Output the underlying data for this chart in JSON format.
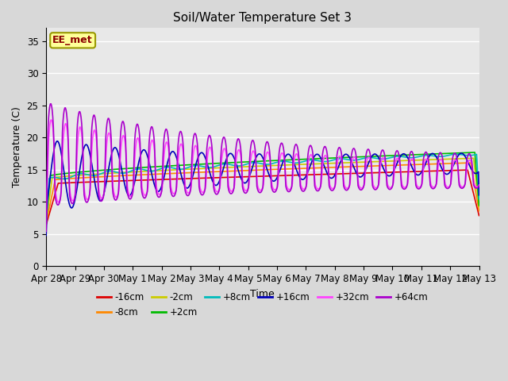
{
  "title": "Soil/Water Temperature Set 3",
  "xlabel": "Time",
  "ylabel": "Temperature (C)",
  "ylim": [
    0,
    37
  ],
  "yticks": [
    0,
    5,
    10,
    15,
    20,
    25,
    30,
    35
  ],
  "fig_bg": "#d8d8d8",
  "plot_bg": "#e8e8e8",
  "grid_color": "#ffffff",
  "watermark_text": "EE_met",
  "watermark_fg": "#8b0000",
  "watermark_bg": "#ffff99",
  "watermark_border": "#999900",
  "series_colors": {
    "-16cm": "#dd0000",
    "-8cm": "#ff8800",
    "-2cm": "#cccc00",
    "+2cm": "#00bb00",
    "+8cm": "#00bbbb",
    "+16cm": "#0000bb",
    "+32cm": "#ff44ff",
    "+64cm": "#aa00cc"
  },
  "x_tick_labels": [
    "Apr 28",
    "Apr 29",
    "Apr 30",
    "May 1",
    "May 2",
    "May 3",
    "May 4",
    "May 5",
    "May 6",
    "May 7",
    "May 8",
    "May 9",
    "May 10",
    "May 11",
    "May 12",
    "May 13"
  ],
  "num_points": 720
}
